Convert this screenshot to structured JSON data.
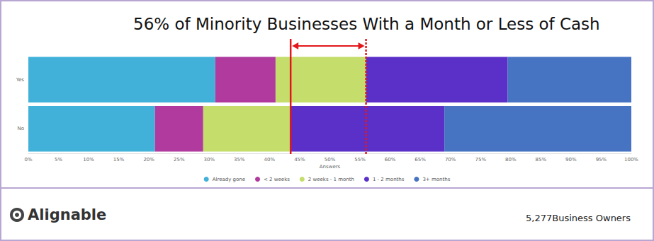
{
  "chart_data": {
    "type": "bar",
    "orientation": "horizontal",
    "stacked": true,
    "title": "56% of Minority Businesses With a Month or Less of Cash",
    "x_label": "Answers",
    "categories": [
      "Yes",
      "No"
    ],
    "series": [
      {
        "name": "Already gone",
        "color": "#41b1d9",
        "values": [
          31,
          21
        ]
      },
      {
        "name": "< 2 weeks",
        "color": "#b03a9e",
        "values": [
          10,
          8
        ]
      },
      {
        "name": "2 weeks - 1 month",
        "color": "#c4dd6b",
        "values": [
          15,
          14.5
        ]
      },
      {
        "name": "1 - 2 months",
        "color": "#5a30c8",
        "values": [
          23.5,
          25.5
        ]
      },
      {
        "name": "3+ months",
        "color": "#4673c2",
        "values": [
          20.5,
          31
        ]
      }
    ],
    "xlim": [
      0,
      100
    ],
    "xticks": [
      {
        "value": 0,
        "label": "0%"
      },
      {
        "value": 5,
        "label": "5%"
      },
      {
        "value": 10,
        "label": "10%"
      },
      {
        "value": 15,
        "label": "15%"
      },
      {
        "value": 20,
        "label": "20%"
      },
      {
        "value": 25,
        "label": "25%"
      },
      {
        "value": 30,
        "label": "30%"
      },
      {
        "value": 35,
        "label": "35%"
      },
      {
        "value": 40,
        "label": "40%"
      },
      {
        "value": 45,
        "label": "45%"
      },
      {
        "value": 50,
        "label": "50%"
      },
      {
        "value": 55,
        "label": "55%"
      },
      {
        "value": 60,
        "label": "60%"
      },
      {
        "value": 65,
        "label": "65%"
      },
      {
        "value": 70,
        "label": "70%"
      },
      {
        "value": 75,
        "label": "75%"
      },
      {
        "value": 80,
        "label": "80%"
      },
      {
        "value": 85,
        "label": "85%"
      },
      {
        "value": 90,
        "label": "90%"
      },
      {
        "value": 95,
        "label": "95%"
      },
      {
        "value": 100,
        "label": "100%"
      }
    ],
    "grid": false,
    "legend": "bottom",
    "data_labels": false,
    "reference_lines": [
      {
        "value": 43.5,
        "line_style": "solid",
        "color": "#e3171b"
      },
      {
        "value": 56,
        "line_style": "dashed",
        "color": "#e3171b"
      }
    ],
    "logo_text": "Alignable",
    "sample_text": "5,277Business Owners"
  }
}
